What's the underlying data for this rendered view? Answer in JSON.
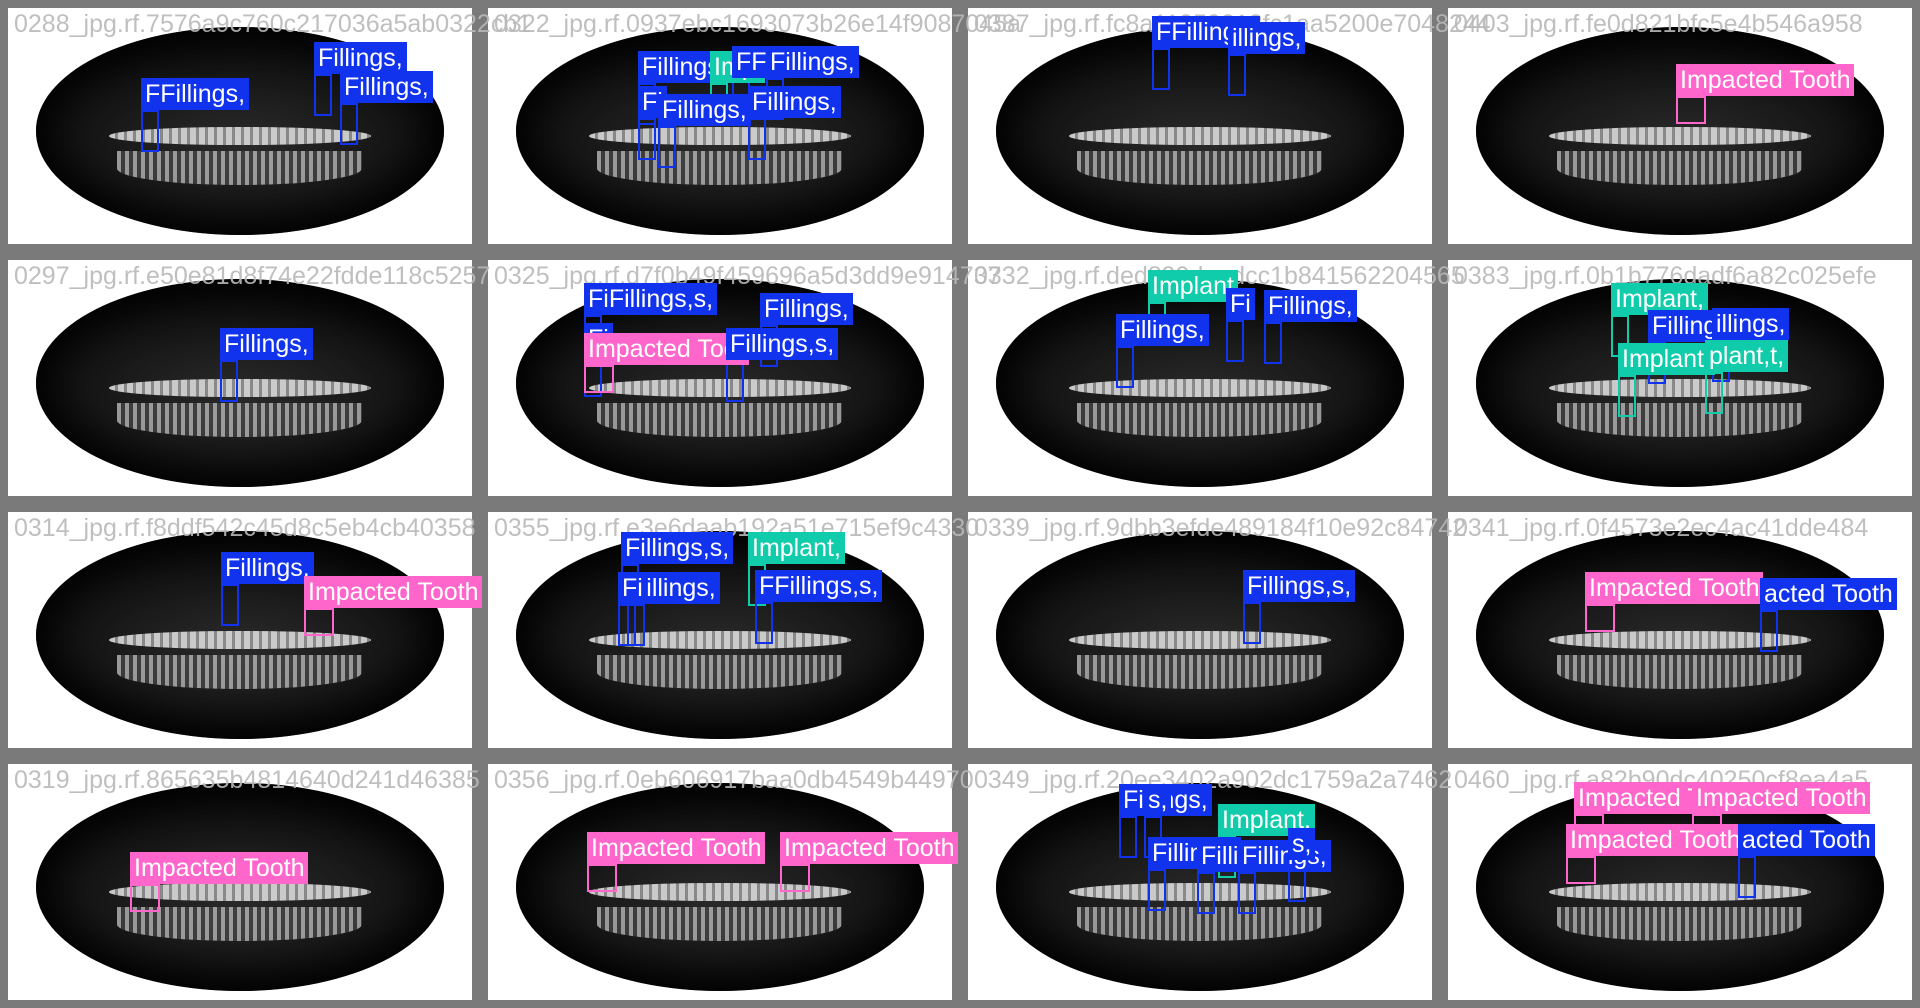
{
  "class_colors": {
    "Fillings": "#1133ee",
    "Implant": "#11ccaa",
    "Impacted Tooth": "#ff66cc"
  },
  "tiles": [
    {
      "filename": "0288_jpg.rf.7576a9c760c217036a5ab0322cb1",
      "labels": [
        "FFillings,",
        "Fillings,",
        "Fillings,"
      ]
    },
    {
      "filename": "0322_jpg.rf.0937ebc1693073b26e14f9087045a",
      "labels": [
        "Fillings,",
        "Impl",
        "FF",
        "Fillings,",
        "Fi",
        "Fillings,",
        "Fillings,"
      ]
    },
    {
      "filename": "0387_jpg.rf.fc8a11959313fc1aa5200e7048244",
      "labels": [
        "FFillings,",
        "illings,"
      ]
    },
    {
      "filename": "0403_jpg.rf.fe0d821bfc5e4b546a958",
      "labels": [
        "Impacted Tooth"
      ]
    },
    {
      "filename": "0297_jpg.rf.e50e81d8f74e22fdde118c5257",
      "labels": [
        "Fillings,"
      ]
    },
    {
      "filename": "0325_jpg.rf.d7f0b49f459696a5d3dd9e914737",
      "labels": [
        "FiFillings,s,",
        "Fi",
        "Fillings,",
        "Impacted Toot",
        "Fillings,s,"
      ]
    },
    {
      "filename": "0332_jpg.rf.ded899daadcc1b841562204565",
      "labels": [
        "Implant",
        "Fillings,",
        "Fi",
        "Fillings,"
      ]
    },
    {
      "filename": "0383_jpg.rf.0b1b776dadf6a82c025efe",
      "labels": [
        "Implant,",
        "Fillings,",
        "illings,",
        "Implant,",
        "plant,t,"
      ]
    },
    {
      "filename": "0314_jpg.rf.f8ddf542c45d8c5eb4cb40358",
      "labels": [
        "Fillings,",
        "Impacted Tooth"
      ]
    },
    {
      "filename": "0355_jpg.rf.e3e6daab192a51e715ef9c4330",
      "labels": [
        "Fillings,s,",
        "Implant,",
        "Fillings,",
        "Fi",
        "FFillings,s,"
      ]
    },
    {
      "filename": "0339_jpg.rf.9dbb3efde489184f10e92c84742",
      "labels": [
        "Fillings,s,"
      ]
    },
    {
      "filename": "0341_jpg.rf.0f4573e2ec4ac41dde484",
      "labels": [
        "Impacted Tooth",
        "acted Tooth"
      ]
    },
    {
      "filename": "0319_jpg.rf.865635b4814640d241d46385",
      "labels": [
        "Impacted Tooth"
      ]
    },
    {
      "filename": "0356_jpg.rf.0eb606917baa0db4549b44970",
      "labels": [
        "Impacted Tooth",
        "Impacted Tooth"
      ]
    },
    {
      "filename": "0349_jpg.rf.20ee3402a902dc1759a2a7462",
      "labels": [
        "Fillings,",
        "s,",
        "Implant,",
        "Fillings,",
        "Fillings,",
        "Fillings,",
        "s,"
      ]
    },
    {
      "filename": "0460_jpg.rf.a82b90dc40250cf8ea4a5",
      "labels": [
        "Impacted T",
        "Impacted Tooth",
        "Impacted Tooth",
        "acted Tooth"
      ]
    }
  ]
}
